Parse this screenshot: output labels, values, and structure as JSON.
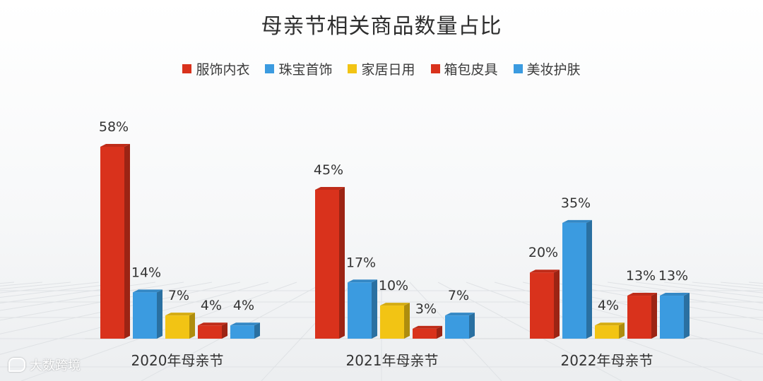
{
  "chart_data": {
    "type": "bar",
    "title": "母亲节相关商品数量占比",
    "categories": [
      "2020年母亲节",
      "2021年母亲节",
      "2022年母亲节"
    ],
    "series": [
      {
        "name": "服饰内衣",
        "color": "#d9321c",
        "values": [
          58,
          45,
          20
        ]
      },
      {
        "name": "珠宝首饰",
        "color": "#3b9be0",
        "values": [
          14,
          17,
          35
        ]
      },
      {
        "name": "家居日用",
        "color": "#f2c414",
        "values": [
          7,
          10,
          4
        ]
      },
      {
        "name": "箱包皮具",
        "color": "#d9321c",
        "values": [
          4,
          3,
          13
        ]
      },
      {
        "name": "美妆护肤",
        "color": "#3b9be0",
        "values": [
          4,
          7,
          13
        ]
      }
    ],
    "data_labels": [
      [
        "58%",
        "14%",
        "7%",
        "4%",
        "4%"
      ],
      [
        "45%",
        "17%",
        "10%",
        "3%",
        "7%"
      ],
      [
        "20%",
        "35%",
        "4%",
        "13%",
        "13%"
      ]
    ],
    "ylim": [
      0,
      58
    ],
    "grid": false,
    "legend_position": "top"
  },
  "watermark": {
    "text": "大数跨境",
    "icon": "brand-logo-icon"
  }
}
